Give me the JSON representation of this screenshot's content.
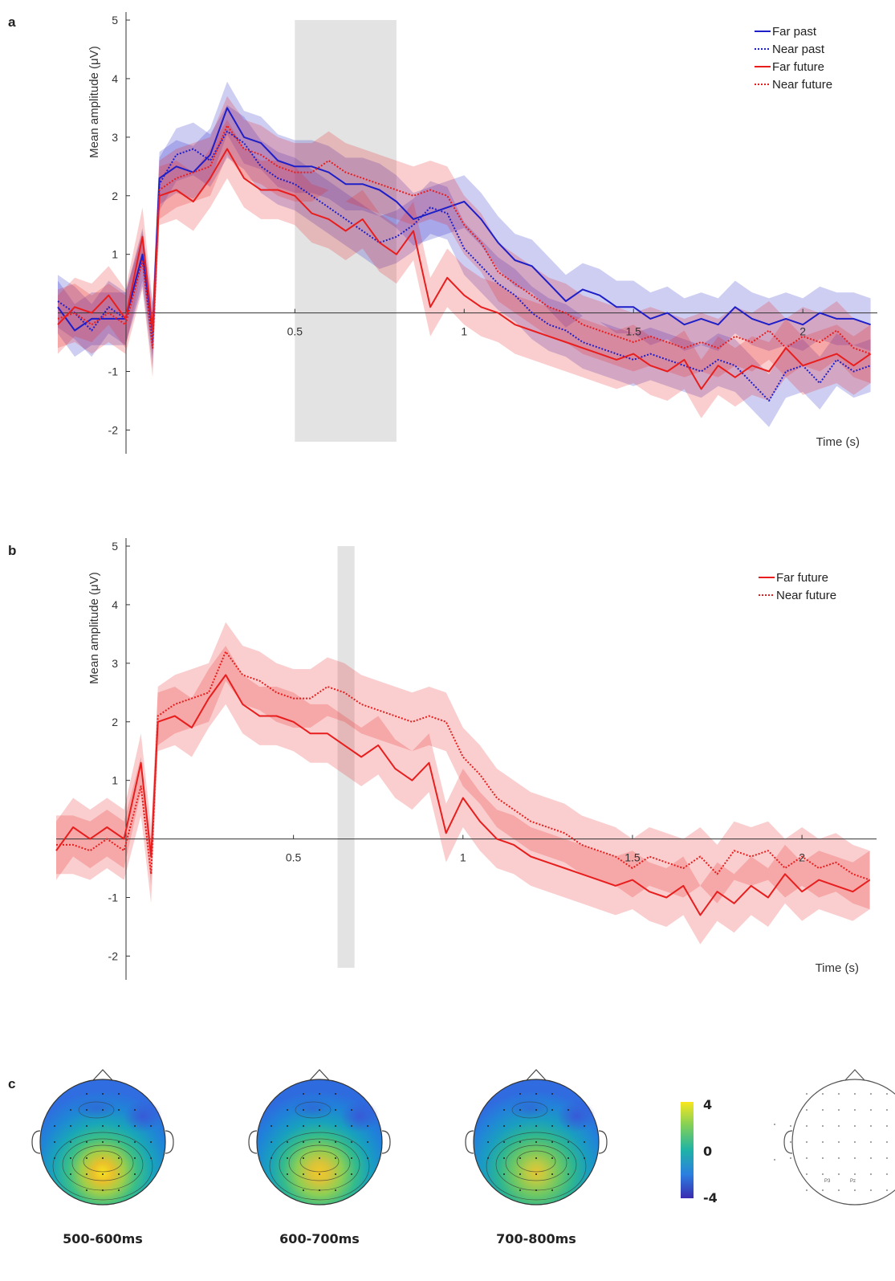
{
  "panels": {
    "a": {
      "letter": "a"
    },
    "b": {
      "letter": "b"
    },
    "c": {
      "letter": "c"
    }
  },
  "chart_data": [
    {
      "type": "line",
      "panel": "a",
      "ylabel": "Mean amplitude (μV)",
      "xlabel": "Time (s)",
      "xlim": [
        -0.2,
        2.22
      ],
      "ylim": [
        -2.2,
        5
      ],
      "xticks": [
        "0.5",
        "1",
        "1.5",
        "2"
      ],
      "xtick_values": [
        0.5,
        1,
        1.5,
        2
      ],
      "yticks": [
        "-2",
        "-1",
        "1",
        "2",
        "3",
        "4",
        "5"
      ],
      "ytick_values": [
        -2,
        -1,
        1,
        2,
        3,
        4,
        5
      ],
      "highlight": [
        0.5,
        0.8
      ],
      "legend_position": "top-right",
      "series": [
        {
          "name": "Far past",
          "color": "#1f1fc8",
          "style": "solid",
          "x": [
            -0.2,
            -0.15,
            -0.1,
            -0.05,
            0,
            0.05,
            0.08,
            0.1,
            0.15,
            0.2,
            0.25,
            0.3,
            0.35,
            0.4,
            0.45,
            0.5,
            0.55,
            0.6,
            0.65,
            0.7,
            0.75,
            0.8,
            0.85,
            0.9,
            0.95,
            1,
            1.05,
            1.1,
            1.15,
            1.2,
            1.25,
            1.3,
            1.35,
            1.4,
            1.45,
            1.5,
            1.55,
            1.6,
            1.65,
            1.7,
            1.75,
            1.8,
            1.85,
            1.9,
            1.95,
            2,
            2.05,
            2.1,
            2.15,
            2.2
          ],
          "y": [
            0.1,
            -0.3,
            -0.1,
            -0.1,
            -0.1,
            1.0,
            -0.3,
            2.3,
            2.5,
            2.4,
            2.7,
            3.5,
            3.0,
            2.9,
            2.6,
            2.5,
            2.5,
            2.4,
            2.2,
            2.2,
            2.1,
            1.9,
            1.6,
            1.7,
            1.8,
            1.9,
            1.6,
            1.2,
            0.9,
            0.8,
            0.5,
            0.2,
            0.4,
            0.3,
            0.1,
            0.1,
            -0.1,
            0.0,
            -0.2,
            -0.1,
            -0.2,
            0.1,
            -0.1,
            -0.2,
            -0.1,
            -0.2,
            0.0,
            -0.1,
            -0.1,
            -0.2
          ],
          "band": 0.45
        },
        {
          "name": "Near past",
          "color": "#1f1fc8",
          "style": "dotted",
          "x": [
            -0.2,
            -0.15,
            -0.1,
            -0.05,
            0,
            0.05,
            0.08,
            0.1,
            0.15,
            0.2,
            0.25,
            0.3,
            0.35,
            0.4,
            0.45,
            0.5,
            0.55,
            0.6,
            0.65,
            0.7,
            0.75,
            0.8,
            0.85,
            0.9,
            0.95,
            1,
            1.05,
            1.1,
            1.15,
            1.2,
            1.25,
            1.3,
            1.35,
            1.4,
            1.45,
            1.5,
            1.55,
            1.6,
            1.65,
            1.7,
            1.75,
            1.8,
            1.85,
            1.9,
            1.95,
            2,
            2.05,
            2.1,
            2.15,
            2.2
          ],
          "y": [
            0.2,
            0.0,
            -0.3,
            0.1,
            -0.1,
            0.9,
            -0.5,
            2.2,
            2.7,
            2.8,
            2.6,
            3.1,
            2.9,
            2.5,
            2.3,
            2.2,
            2.0,
            1.8,
            1.6,
            1.4,
            1.2,
            1.3,
            1.5,
            1.8,
            1.7,
            1.1,
            0.8,
            0.5,
            0.3,
            0.0,
            -0.2,
            -0.3,
            -0.5,
            -0.6,
            -0.7,
            -0.8,
            -0.7,
            -0.8,
            -0.9,
            -1.0,
            -0.8,
            -0.9,
            -1.2,
            -1.5,
            -1.0,
            -0.9,
            -1.2,
            -0.8,
            -1.0,
            -0.9
          ],
          "band": 0.45
        },
        {
          "name": "Far future",
          "color": "#e81e1e",
          "style": "solid",
          "x": [
            -0.2,
            -0.15,
            -0.1,
            -0.05,
            0,
            0.05,
            0.08,
            0.1,
            0.15,
            0.2,
            0.25,
            0.3,
            0.35,
            0.4,
            0.45,
            0.5,
            0.55,
            0.6,
            0.65,
            0.7,
            0.75,
            0.8,
            0.85,
            0.9,
            0.95,
            1,
            1.05,
            1.1,
            1.15,
            1.2,
            1.25,
            1.3,
            1.35,
            1.4,
            1.45,
            1.5,
            1.55,
            1.6,
            1.65,
            1.7,
            1.75,
            1.8,
            1.85,
            1.9,
            1.95,
            2,
            2.05,
            2.1,
            2.15,
            2.2
          ],
          "y": [
            -0.2,
            0.1,
            0.0,
            0.3,
            -0.1,
            1.3,
            -0.3,
            2.0,
            2.1,
            1.9,
            2.3,
            2.8,
            2.3,
            2.1,
            2.1,
            2.0,
            1.7,
            1.6,
            1.4,
            1.6,
            1.2,
            1.0,
            1.4,
            0.1,
            0.6,
            0.3,
            0.1,
            0.0,
            -0.2,
            -0.3,
            -0.4,
            -0.5,
            -0.6,
            -0.7,
            -0.8,
            -0.7,
            -0.9,
            -1.0,
            -0.8,
            -1.3,
            -0.9,
            -1.1,
            -0.9,
            -1.0,
            -0.6,
            -0.9,
            -0.8,
            -0.7,
            -0.9,
            -0.7
          ],
          "band": 0.5
        },
        {
          "name": "Near future",
          "color": "#e81e1e",
          "style": "dotted",
          "x": [
            -0.2,
            -0.15,
            -0.1,
            -0.05,
            0,
            0.05,
            0.08,
            0.1,
            0.15,
            0.2,
            0.25,
            0.3,
            0.35,
            0.4,
            0.45,
            0.5,
            0.55,
            0.6,
            0.65,
            0.7,
            0.75,
            0.8,
            0.85,
            0.9,
            0.95,
            1,
            1.05,
            1.1,
            1.15,
            1.2,
            1.25,
            1.3,
            1.35,
            1.4,
            1.45,
            1.5,
            1.55,
            1.6,
            1.65,
            1.7,
            1.75,
            1.8,
            1.85,
            1.9,
            1.95,
            2,
            2.05,
            2.1,
            2.15,
            2.2
          ],
          "y": [
            -0.1,
            0.0,
            -0.2,
            0.0,
            -0.2,
            0.9,
            -0.6,
            2.1,
            2.3,
            2.4,
            2.5,
            3.2,
            2.8,
            2.7,
            2.5,
            2.4,
            2.4,
            2.6,
            2.4,
            2.3,
            2.2,
            2.1,
            2.0,
            2.1,
            2.0,
            1.5,
            1.2,
            0.7,
            0.5,
            0.3,
            0.1,
            0.0,
            -0.2,
            -0.3,
            -0.4,
            -0.5,
            -0.4,
            -0.5,
            -0.6,
            -0.5,
            -0.6,
            -0.4,
            -0.5,
            -0.3,
            -0.6,
            -0.4,
            -0.5,
            -0.3,
            -0.6,
            -0.7
          ],
          "band": 0.5
        }
      ]
    },
    {
      "type": "line",
      "panel": "b",
      "ylabel": "Mean amplitude (μV)",
      "xlabel": "Time (s)",
      "xlim": [
        -0.2,
        2.22
      ],
      "ylim": [
        -2.2,
        5
      ],
      "xticks": [
        "0.5",
        "1",
        "1.5",
        "2"
      ],
      "xtick_values": [
        0.5,
        1,
        1.5,
        2
      ],
      "yticks": [
        "-2",
        "-1",
        "1",
        "2",
        "3",
        "4",
        "5"
      ],
      "ytick_values": [
        -2,
        -1,
        1,
        2,
        3,
        4,
        5
      ],
      "highlight": [
        0.63,
        0.68
      ],
      "legend_position": "top-right",
      "series": [
        {
          "name": "Far future",
          "color": "#e81e1e",
          "style": "solid",
          "x": [
            -0.2,
            -0.15,
            -0.1,
            -0.05,
            0,
            0.05,
            0.08,
            0.1,
            0.15,
            0.2,
            0.25,
            0.3,
            0.35,
            0.4,
            0.45,
            0.5,
            0.55,
            0.6,
            0.65,
            0.7,
            0.75,
            0.8,
            0.85,
            0.9,
            0.95,
            1,
            1.05,
            1.1,
            1.15,
            1.2,
            1.25,
            1.3,
            1.35,
            1.4,
            1.45,
            1.5,
            1.55,
            1.6,
            1.65,
            1.7,
            1.75,
            1.8,
            1.85,
            1.9,
            1.95,
            2,
            2.05,
            2.1,
            2.15,
            2.2
          ],
          "y": [
            -0.2,
            0.2,
            0.0,
            0.2,
            0.0,
            1.3,
            -0.3,
            2.0,
            2.1,
            1.9,
            2.4,
            2.8,
            2.3,
            2.1,
            2.1,
            2.0,
            1.8,
            1.8,
            1.6,
            1.4,
            1.6,
            1.2,
            1.0,
            1.3,
            0.1,
            0.7,
            0.3,
            0.0,
            -0.1,
            -0.3,
            -0.4,
            -0.5,
            -0.6,
            -0.7,
            -0.8,
            -0.7,
            -0.9,
            -1.0,
            -0.8,
            -1.3,
            -0.9,
            -1.1,
            -0.8,
            -1.0,
            -0.6,
            -0.9,
            -0.7,
            -0.8,
            -0.9,
            -0.7
          ],
          "band": 0.5
        },
        {
          "name": "Near future",
          "color": "#e81e1e",
          "style": "dotted",
          "x": [
            -0.2,
            -0.15,
            -0.1,
            -0.05,
            0,
            0.05,
            0.08,
            0.1,
            0.15,
            0.2,
            0.25,
            0.3,
            0.35,
            0.4,
            0.45,
            0.5,
            0.55,
            0.6,
            0.65,
            0.7,
            0.75,
            0.8,
            0.85,
            0.9,
            0.95,
            1,
            1.05,
            1.1,
            1.15,
            1.2,
            1.25,
            1.3,
            1.35,
            1.4,
            1.45,
            1.5,
            1.55,
            1.6,
            1.65,
            1.7,
            1.75,
            1.8,
            1.85,
            1.9,
            1.95,
            2,
            2.05,
            2.1,
            2.15,
            2.2
          ],
          "y": [
            -0.1,
            -0.1,
            -0.2,
            0.0,
            -0.2,
            0.9,
            -0.6,
            2.1,
            2.3,
            2.4,
            2.5,
            3.2,
            2.8,
            2.7,
            2.5,
            2.4,
            2.4,
            2.6,
            2.5,
            2.3,
            2.2,
            2.1,
            2.0,
            2.1,
            2.0,
            1.4,
            1.1,
            0.7,
            0.5,
            0.3,
            0.2,
            0.1,
            -0.1,
            -0.2,
            -0.3,
            -0.5,
            -0.3,
            -0.4,
            -0.5,
            -0.3,
            -0.6,
            -0.2,
            -0.3,
            -0.2,
            -0.5,
            -0.3,
            -0.5,
            -0.4,
            -0.6,
            -0.7
          ],
          "band": 0.5
        }
      ]
    }
  ],
  "topomaps": {
    "maps": [
      {
        "label": "500-600ms",
        "peak": 0.88
      },
      {
        "label": "600-700ms",
        "peak": 0.82
      },
      {
        "label": "700-800ms",
        "peak": 0.78
      }
    ],
    "colorbar": {
      "max_label": "4",
      "mid_label": "0",
      "min_label": "-4"
    },
    "electrode_labels": [
      "P3",
      "Pz"
    ]
  }
}
